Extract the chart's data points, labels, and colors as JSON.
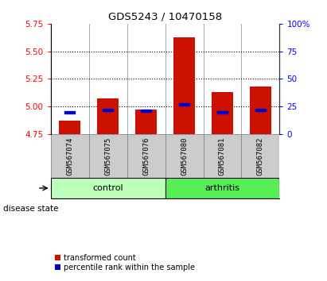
{
  "title": "GDS5243 / 10470158",
  "samples": [
    "GSM567074",
    "GSM567075",
    "GSM567076",
    "GSM567080",
    "GSM567081",
    "GSM567082"
  ],
  "groups": [
    "control",
    "control",
    "control",
    "arthritis",
    "arthritis",
    "arthritis"
  ],
  "transformed_counts": [
    4.87,
    5.07,
    4.97,
    5.63,
    5.13,
    5.18
  ],
  "percentile_ranks": [
    20,
    22,
    21,
    27,
    20,
    22
  ],
  "bar_bottom": 4.75,
  "ylim_left": [
    4.75,
    5.75
  ],
  "yticks_left": [
    4.75,
    5.0,
    5.25,
    5.5,
    5.75
  ],
  "ylim_right": [
    0,
    100
  ],
  "yticks_right": [
    0,
    25,
    50,
    75,
    100
  ],
  "bar_color": "#cc1100",
  "percentile_color": "#0000cc",
  "control_color": "#bbffbb",
  "arthritis_color": "#55ee55",
  "group_label": "disease state",
  "legend_items": [
    "transformed count",
    "percentile rank within the sample"
  ],
  "bar_width": 0.55,
  "sample_area_color": "#cccccc",
  "right_tick_labels": [
    "0",
    "25",
    "50",
    "75",
    "100%"
  ]
}
